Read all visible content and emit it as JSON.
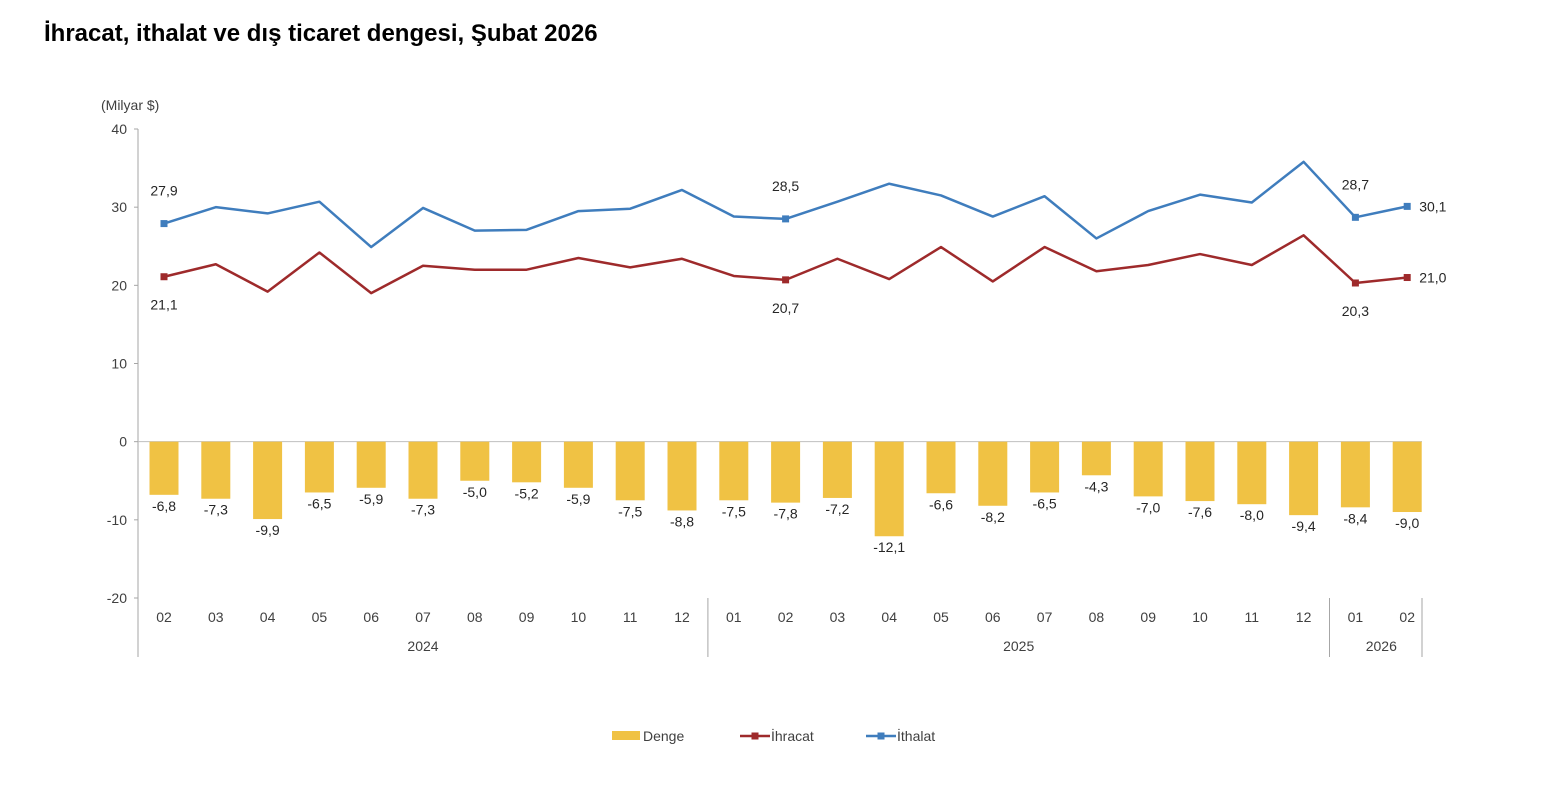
{
  "chart_data": {
    "type": "bar+line",
    "title": "İhracat, ithalat ve dış ticaret dengesi, Şubat 2026",
    "ylabel": "(Milyar $)",
    "ylim": [
      -20,
      40
    ],
    "yticks": [
      40,
      30,
      20,
      10,
      0,
      -10,
      -20
    ],
    "categories": [
      "02",
      "03",
      "04",
      "05",
      "06",
      "07",
      "08",
      "09",
      "10",
      "11",
      "12",
      "01",
      "02",
      "03",
      "04",
      "05",
      "06",
      "07",
      "08",
      "09",
      "10",
      "11",
      "12",
      "01",
      "02"
    ],
    "groups": [
      {
        "label": "2024",
        "start": 0,
        "end": 10
      },
      {
        "label": "2025",
        "start": 11,
        "end": 22
      },
      {
        "label": "2026",
        "start": 23,
        "end": 24
      }
    ],
    "series": [
      {
        "name": "Denge",
        "kind": "bar",
        "color": "#f0c244",
        "values": [
          -6.8,
          -7.3,
          -9.9,
          -6.5,
          -5.9,
          -7.3,
          -5.0,
          -5.2,
          -5.9,
          -7.5,
          -8.8,
          -7.5,
          -7.8,
          -7.2,
          -12.1,
          -6.6,
          -8.2,
          -6.5,
          -4.3,
          -7.0,
          -7.6,
          -8.0,
          -9.4,
          -8.4,
          -9.0
        ],
        "labels": [
          "-6,8",
          "-7,3",
          "-9,9",
          "-6,5",
          "-5,9",
          "-7,3",
          "-5,0",
          "-5,2",
          "-5,9",
          "-7,5",
          "-8,8",
          "-7,5",
          "-7,8",
          "-7,2",
          "-12,1",
          "-6,6",
          "-8,2",
          "-6,5",
          "-4,3",
          "-7,0",
          "-7,6",
          "-8,0",
          "-9,4",
          "-8,4",
          "-9,0"
        ]
      },
      {
        "name": "İhracat",
        "kind": "line",
        "color": "#9e2a2b",
        "values": [
          21.1,
          22.7,
          19.2,
          24.2,
          19.0,
          22.5,
          22.0,
          22.0,
          23.5,
          22.3,
          23.4,
          21.2,
          20.7,
          23.4,
          20.8,
          24.9,
          20.5,
          24.9,
          21.8,
          22.6,
          24.0,
          22.6,
          26.4,
          20.3,
          21.0
        ],
        "labels": [
          {
            "i": 0,
            "text": "21,1"
          },
          {
            "i": 12,
            "text": "20,7"
          },
          {
            "i": 23,
            "text": "20,3"
          },
          {
            "i": 24,
            "text": "21,0"
          }
        ]
      },
      {
        "name": "İthalat",
        "kind": "line",
        "color": "#3f7dbd",
        "values": [
          27.9,
          30.0,
          29.2,
          30.7,
          24.9,
          29.9,
          27.0,
          27.1,
          29.5,
          29.8,
          32.2,
          28.8,
          28.5,
          30.7,
          33.0,
          31.5,
          28.8,
          31.4,
          26.0,
          29.5,
          31.6,
          30.6,
          35.8,
          28.7,
          30.1
        ],
        "labels": [
          {
            "i": 0,
            "text": "27,9"
          },
          {
            "i": 12,
            "text": "28,5"
          },
          {
            "i": 23,
            "text": "28,7"
          },
          {
            "i": 24,
            "text": "30,1"
          }
        ]
      }
    ],
    "legend": [
      "Denge",
      "İhracat",
      "İthalat"
    ],
    "legend_position": "bottom-center"
  }
}
